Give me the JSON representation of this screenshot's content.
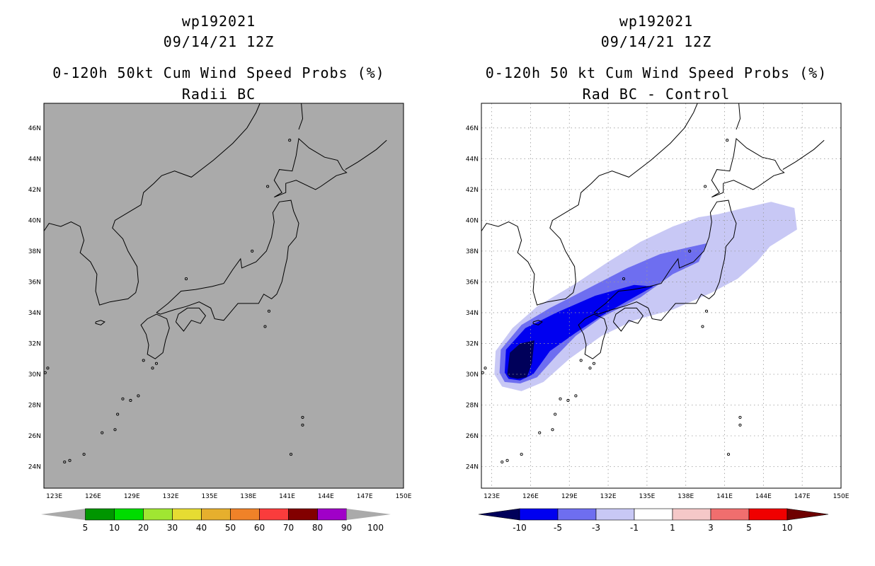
{
  "panels": [
    {
      "title_line1": "wp192021",
      "title_line2": "09/14/21 12Z",
      "title_line3": "0-120h 50kt Cum Wind Speed Probs (%)",
      "title_line4": "Radii BC",
      "background_color": "#aaaaaa",
      "colorbar": {
        "labels": [
          "5",
          "10",
          "20",
          "30",
          "40",
          "50",
          "60",
          "70",
          "80",
          "90",
          "100"
        ],
        "colors": [
          "#aaaaaa",
          "#009600",
          "#00dc00",
          "#a0e632",
          "#e6dc32",
          "#e6af2d",
          "#f08228",
          "#fa3c3c",
          "#820000",
          "#a000c8",
          "#aaaaaa"
        ]
      }
    },
    {
      "title_line1": "wp192021",
      "title_line2": "09/14/21 12Z",
      "title_line3": "0-120h 50 kt Cum Wind Speed Probs (%)",
      "title_line4": "Rad BC - Control",
      "background_color": "#ffffff",
      "colorbar": {
        "labels": [
          "-10",
          "-5",
          "-3",
          "-1",
          "1",
          "3",
          "5",
          "10"
        ],
        "colors": [
          "#00005a",
          "#0000f0",
          "#6e6ef0",
          "#c8c8f5",
          "#ffffff",
          "#f5c8c8",
          "#f06e6e",
          "#f00000",
          "#6e0000"
        ]
      }
    }
  ],
  "chart_data": [
    {
      "type": "heatmap",
      "title": "0-120h 50kt Cum Wind Speed Probs (%)",
      "subtitle": "Radii BC",
      "storm": "wp192021",
      "date": "09/14/21 12Z",
      "x_ticks": [
        "123E",
        "126E",
        "129E",
        "132E",
        "135E",
        "138E",
        "141E",
        "144E",
        "147E",
        "150E"
      ],
      "y_ticks": [
        "24N",
        "26N",
        "28N",
        "30N",
        "32N",
        "34N",
        "36N",
        "38N",
        "40N",
        "42N",
        "44N",
        "46N"
      ],
      "xlim": [
        122.2,
        150
      ],
      "ylim": [
        22.6,
        47.6
      ],
      "grid": false,
      "legend": "bottom",
      "levels": [
        5,
        10,
        20,
        30,
        40,
        50,
        60,
        70,
        80,
        90,
        100
      ]
    },
    {
      "type": "heatmap",
      "title": "0-120h 50 kt Cum Wind Speed Probs (%)",
      "subtitle": "Rad BC - Control",
      "storm": "wp192021",
      "date": "09/14/21 12Z",
      "x_ticks": [
        "123E",
        "126E",
        "129E",
        "132E",
        "135E",
        "138E",
        "141E",
        "144E",
        "147E",
        "150E"
      ],
      "y_ticks": [
        "24N",
        "26N",
        "28N",
        "30N",
        "32N",
        "34N",
        "36N",
        "38N",
        "40N",
        "42N",
        "44N",
        "46N"
      ],
      "xlim": [
        122.2,
        150
      ],
      "ylim": [
        22.6,
        47.6
      ],
      "grid": true,
      "legend": "bottom",
      "levels": [
        -10,
        -5,
        -3,
        -1,
        1,
        3,
        5,
        10
      ]
    }
  ]
}
